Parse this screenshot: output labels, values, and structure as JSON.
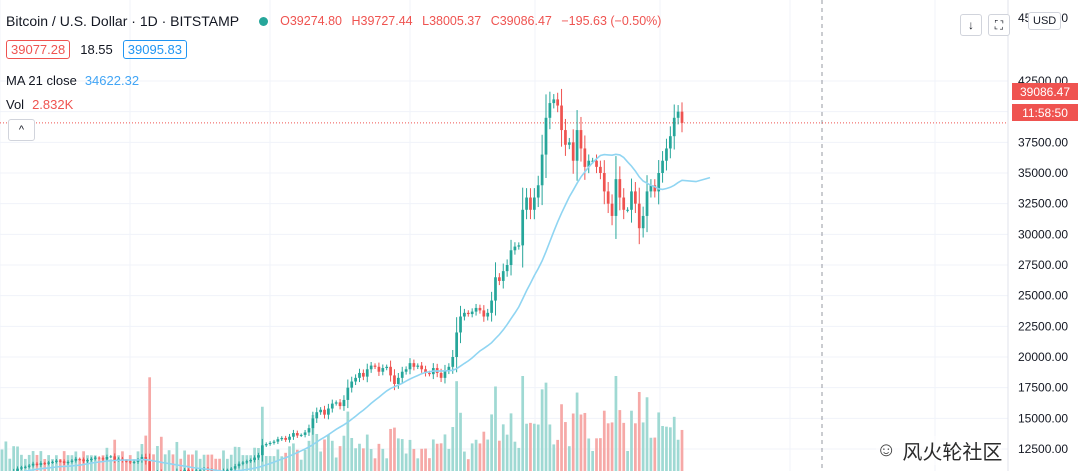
{
  "legend": {
    "title": "Bitcoin / U.S. Dollar · 1D · BITSTAMP",
    "status_dot_color": "#26a69a",
    "open": "O39274.80",
    "high": "H39727.44",
    "low": "L38005.37",
    "close": "C39086.47",
    "change": "−195.63 (−0.50%)",
    "bid": "39077.28",
    "spread": "18.55",
    "ask": "39095.83",
    "ma_label": "MA 21 close",
    "ma_value": "34622.32",
    "vol_label": "Vol",
    "vol_value": "2.832K",
    "collapse_icon": "^"
  },
  "toolbar": {
    "download_icon": "↓",
    "fullscreen_icon": "⛶",
    "currency": "USD"
  },
  "price_scale": {
    "last_price": "39086.47",
    "countdown": "11:58:50"
  },
  "watermark": {
    "icon": "wechat-icon",
    "text": "风火轮社区"
  },
  "chart_data": {
    "type": "candlestick",
    "title": "Bitcoin / U.S. Dollar · 1D · BITSTAMP",
    "ylim": [
      10000,
      45000
    ],
    "y_ticks": [
      12500,
      15000,
      17500,
      20000,
      22500,
      25000,
      27500,
      30000,
      32500,
      35000,
      37500,
      40000,
      42500
    ],
    "y_tick_labels": [
      "12500.00",
      "15000.00",
      "17500.00",
      "20000.00",
      "22500.00",
      "25000.00",
      "27500.00",
      "30000.00",
      "32500.00",
      "35000.00",
      "37500.00",
      "40000.00",
      "42500.00"
    ],
    "top_tick_label": "45000.00",
    "last_price": 39086.47,
    "close_series": [
      10200,
      10450,
      10500,
      10700,
      10900,
      11000,
      11050,
      11150,
      11300,
      11200,
      11350,
      11300,
      11400,
      11450,
      11550,
      11500,
      11350,
      11450,
      11550,
      11700,
      11650,
      11500,
      11600,
      11700,
      11800,
      11750,
      11650,
      11850,
      11900,
      11600,
      11700,
      11550,
      11500,
      11400,
      11450,
      11600,
      11850,
      11500,
      10500,
      10400,
      10600,
      10300,
      10400,
      10550,
      10450,
      10700,
      10650,
      10800,
      10700,
      10600,
      10750,
      10800,
      10900,
      10800,
      10700,
      10650,
      10600,
      10750,
      10800,
      10900,
      11100,
      11300,
      11400,
      11500,
      11600,
      11800,
      12000,
      12800,
      12900,
      13000,
      13100,
      13300,
      13400,
      13250,
      13500,
      13800,
      13600,
      13650,
      13850,
      14200,
      15000,
      15500,
      15700,
      15300,
      15800,
      16200,
      16300,
      16000,
      16500,
      17500,
      18000,
      18300,
      18700,
      18400,
      19000,
      19300,
      19200,
      18800,
      19100,
      19200,
      18500,
      17800,
      18300,
      18800,
      19000,
      19500,
      19200,
      19300,
      19000,
      18700,
      18600,
      19100,
      18700,
      18300,
      18900,
      19200,
      20000,
      22000,
      23300,
      23600,
      23500,
      23700,
      24000,
      23800,
      23300,
      23600,
      24600,
      26500,
      26200,
      27000,
      27500,
      28700,
      29000,
      29100,
      32000,
      33000,
      32000,
      33000,
      34000,
      36500,
      39500,
      40700,
      41000,
      40500,
      38500,
      37300,
      37500,
      36000,
      38500,
      37000,
      35500,
      36000,
      36000,
      35500,
      35000,
      33500,
      32500,
      31500,
      34500,
      33000,
      32000,
      32000,
      33500,
      32500,
      30500,
      31500,
      33500,
      34000,
      33500,
      35000,
      36000,
      37000,
      38000,
      39500,
      40000,
      39086
    ],
    "ma_label": "MA 21 close",
    "ma_last": 34622.32,
    "ma_color": "#90d5f2",
    "volume_label": "Vol",
    "volume_last": "2.832K",
    "colors": {
      "up": "#26a69a",
      "down": "#ef5350",
      "volume_up": "#9fd9d3",
      "volume_down": "#f6a9a7"
    },
    "grid": true,
    "legend_position": "top-left"
  }
}
